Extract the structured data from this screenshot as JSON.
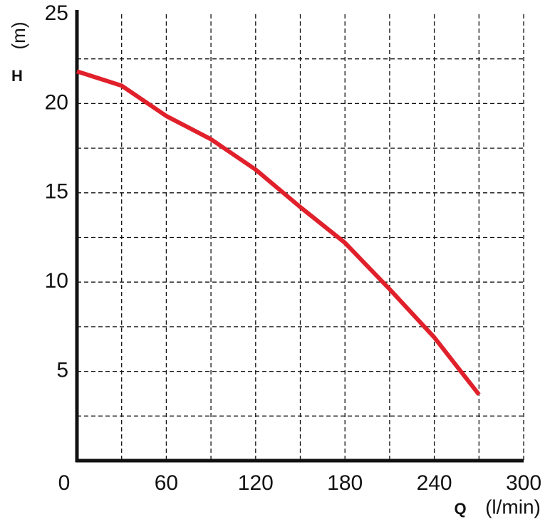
{
  "chart_data": {
    "type": "line",
    "y_label": "H",
    "y_unit": "(m)",
    "x_label": "Q",
    "x_unit": "(l/min)",
    "x": [
      0,
      30,
      60,
      90,
      120,
      150,
      180,
      210,
      240,
      270
    ],
    "series": [
      {
        "color": "#e0202a",
        "values": [
          21.8,
          21.0,
          19.3,
          18.0,
          16.3,
          14.2,
          12.2,
          9.6,
          6.9,
          3.7
        ]
      }
    ],
    "xlim": [
      0,
      300
    ],
    "xticks": [
      0,
      60,
      120,
      180,
      240,
      300
    ],
    "ylim": [
      0,
      25
    ],
    "yticks": [
      5,
      10,
      15,
      20,
      25
    ],
    "xgrid": [
      30,
      60,
      90,
      120,
      150,
      180,
      210,
      240,
      270,
      300
    ],
    "ygrid": [
      2.5,
      5,
      7.5,
      10,
      12.5,
      15,
      17.5,
      20,
      22.5
    ],
    "grid": true
  }
}
